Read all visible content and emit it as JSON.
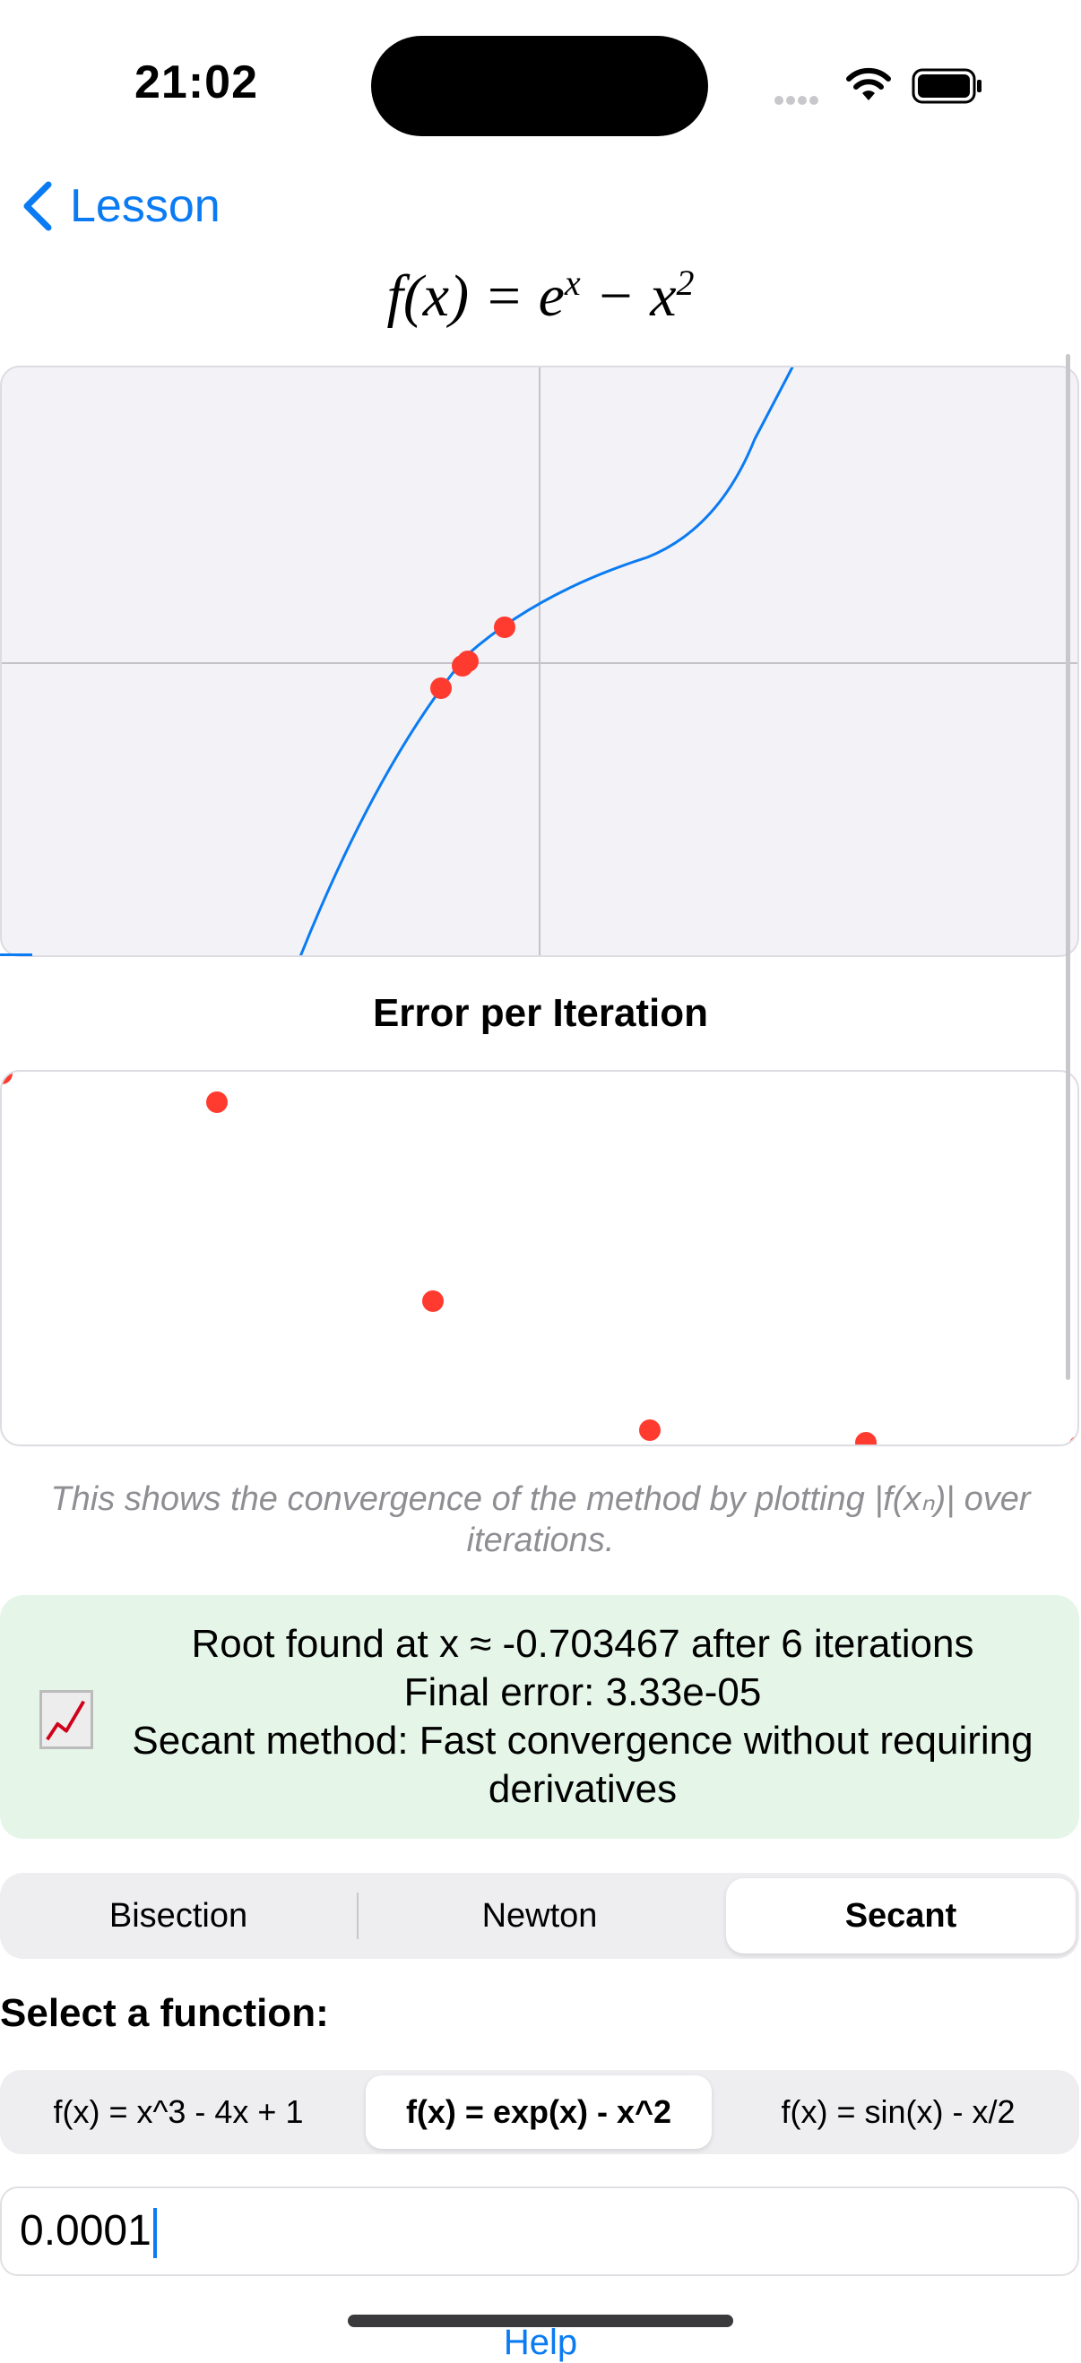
{
  "status_bar": {
    "time": "21:02"
  },
  "nav": {
    "back_label": "Lesson"
  },
  "formula": {
    "lhs": "f(x) = e",
    "exp1": "x",
    "mid": " − x",
    "exp2": "2"
  },
  "function_plot": {
    "curve_color": "#0a7bf2",
    "point_color": "#ff3b30",
    "points_count_shown": 4
  },
  "error_plot": {
    "title": "Error per Iteration",
    "point_color": "#ff3b30",
    "caption": "This shows the convergence of the method by plotting |f(xₙ)| over iterations."
  },
  "result": {
    "icon": "chart-increasing-icon",
    "line1": "Root found at x ≈ -0.703467 after 6 iterations",
    "line2": "Final error: 3.33e-05",
    "line3": "Secant method: Fast convergence without requiring derivatives"
  },
  "method_segment": {
    "items": [
      "Bisection",
      "Newton",
      "Secant"
    ],
    "selected": "Secant"
  },
  "function_select": {
    "label": "Select a function:",
    "items": [
      "f(x) = x^3 - 4x + 1",
      "f(x) = exp(x) - x^2",
      "f(x) = sin(x) - x/2"
    ],
    "selected": "f(x) = exp(x) - x^2"
  },
  "tolerance_input": {
    "value": "0.0001"
  },
  "help_link": "Help"
}
